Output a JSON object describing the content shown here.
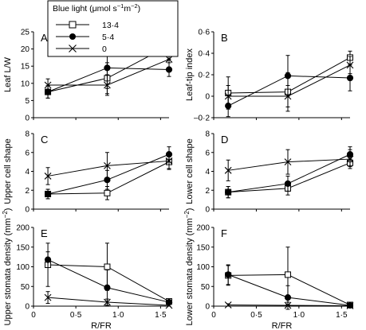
{
  "chart_data": [
    {
      "panel": "A",
      "type": "line",
      "ylabel": "Leaf L/W",
      "xlim": [
        0,
        1.6
      ],
      "ylim": [
        0,
        25
      ],
      "y_ticks": [
        0,
        5,
        10,
        15,
        20,
        25
      ],
      "x_ticks": [
        0,
        0.5,
        1.0,
        1.5
      ],
      "x": [
        0.17,
        0.87,
        1.6
      ],
      "series": [
        {
          "name": "13·4",
          "marker": "square",
          "values": [
            7.5,
            11.5,
            21
          ],
          "err": [
            1.8,
            4.5,
            4
          ]
        },
        {
          "name": "5·4",
          "marker": "circle",
          "values": [
            7.5,
            14.5,
            14
          ],
          "err": [
            1.8,
            6,
            2
          ]
        },
        {
          "name": "0",
          "marker": "x",
          "values": [
            9.5,
            9.5,
            17
          ],
          "err": [
            1.8,
            3,
            3
          ]
        }
      ]
    },
    {
      "panel": "B",
      "type": "line",
      "ylabel": "Leaf-tip index",
      "xlim": [
        0,
        1.6
      ],
      "ylim": [
        -0.2,
        0.6
      ],
      "y_ticks": [
        -0.2,
        0,
        0.2,
        0.4,
        0.6
      ],
      "y_tick_labels": [
        "–0·2",
        "0",
        "0·2",
        "0·4",
        "0·6"
      ],
      "x_ticks": [
        0,
        0.5,
        1.0,
        1.5
      ],
      "x": [
        0.17,
        0.87,
        1.6
      ],
      "series": [
        {
          "name": "13·4",
          "marker": "square",
          "values": [
            0.03,
            0.04,
            0.36
          ],
          "err": [
            0.15,
            0.18,
            0.06
          ]
        },
        {
          "name": "5·4",
          "marker": "circle",
          "values": [
            -0.09,
            0.19,
            0.17
          ],
          "err": [
            0.1,
            0.19,
            0.12
          ]
        },
        {
          "name": "0",
          "marker": "x",
          "values": [
            0.0,
            0.0,
            0.29
          ],
          "err": [
            0.1,
            0.1,
            0.08
          ]
        }
      ]
    },
    {
      "panel": "C",
      "type": "line",
      "ylabel": "Upper cell shape",
      "xlim": [
        0,
        1.6
      ],
      "ylim": [
        0,
        8
      ],
      "y_ticks": [
        0,
        2,
        4,
        6,
        8
      ],
      "x_ticks": [
        0,
        0.5,
        1.0,
        1.5
      ],
      "x": [
        0.17,
        0.87,
        1.6
      ],
      "series": [
        {
          "name": "13·4",
          "marker": "square",
          "values": [
            1.6,
            1.7,
            5.0
          ],
          "err": [
            0.5,
            0.7,
            0.7
          ]
        },
        {
          "name": "5·4",
          "marker": "circle",
          "values": [
            1.6,
            3.1,
            5.8
          ],
          "err": [
            0.5,
            1.0,
            0.8
          ]
        },
        {
          "name": "0",
          "marker": "x",
          "values": [
            3.5,
            4.6,
            5.1
          ],
          "err": [
            0.9,
            1.4,
            0.9
          ]
        }
      ]
    },
    {
      "panel": "D",
      "type": "line",
      "ylabel": "Lower cell shape",
      "xlim": [
        0,
        1.6
      ],
      "ylim": [
        0,
        8
      ],
      "y_ticks": [
        0,
        2,
        4,
        6,
        8
      ],
      "x_ticks": [
        0,
        0.5,
        1.0,
        1.5
      ],
      "x": [
        0.17,
        0.87,
        1.6
      ],
      "series": [
        {
          "name": "13·4",
          "marker": "square",
          "values": [
            1.8,
            2.2,
            4.9
          ],
          "err": [
            0.6,
            0.7,
            0.4
          ]
        },
        {
          "name": "5·4",
          "marker": "circle",
          "values": [
            1.8,
            2.7,
            5.8
          ],
          "err": [
            0.6,
            0.8,
            0.8
          ]
        },
        {
          "name": "0",
          "marker": "x",
          "values": [
            4.1,
            5.0,
            5.3
          ],
          "err": [
            1.1,
            1.3,
            1.0
          ]
        }
      ]
    },
    {
      "panel": "E",
      "type": "line",
      "ylabel": "Upper stomata density (mm⁻²)",
      "xlabel": "R/FR",
      "xlim": [
        0,
        1.6
      ],
      "ylim": [
        0,
        200
      ],
      "y_ticks": [
        0,
        50,
        100,
        150,
        200
      ],
      "x_ticks": [
        0,
        0.5,
        1.0,
        1.5
      ],
      "x_tick_labels": [
        "0",
        "0·5",
        "1·0",
        "1·5"
      ],
      "x": [
        0.17,
        0.87,
        1.6
      ],
      "series": [
        {
          "name": "13·4",
          "marker": "square",
          "values": [
            105,
            100,
            12
          ],
          "err": [
            55,
            60,
            4
          ]
        },
        {
          "name": "5·4",
          "marker": "circle",
          "values": [
            118,
            47,
            10
          ],
          "err": [
            20,
            45,
            3
          ]
        },
        {
          "name": "0",
          "marker": "x",
          "values": [
            22,
            10,
            2
          ],
          "err": [
            15,
            8,
            2
          ]
        }
      ]
    },
    {
      "panel": "F",
      "type": "line",
      "ylabel": "Lower stomata density (mm⁻²)",
      "xlabel": "R/FR",
      "xlim": [
        0,
        1.6
      ],
      "ylim": [
        0,
        200
      ],
      "y_ticks": [
        0,
        50,
        100,
        150,
        200
      ],
      "x_ticks": [
        0,
        0.5,
        1.0,
        1.5
      ],
      "x_tick_labels": [
        "0",
        "0·5",
        "1·0",
        "1·5"
      ],
      "x": [
        0.17,
        0.87,
        1.6
      ],
      "series": [
        {
          "name": "13·4",
          "marker": "square",
          "values": [
            78,
            80,
            3
          ],
          "err": [
            25,
            70,
            2
          ]
        },
        {
          "name": "5·4",
          "marker": "circle",
          "values": [
            80,
            22,
            2
          ],
          "err": [
            25,
            30,
            2
          ]
        },
        {
          "name": "0",
          "marker": "x",
          "values": [
            3,
            2,
            1
          ],
          "err": [
            3,
            2,
            1
          ]
        }
      ]
    }
  ],
  "legend": {
    "title_text": "Blue light (μmol s",
    "title_exp1": "−1",
    "title_mid": "m",
    "title_exp2": "−2",
    "title_end": ")",
    "items": [
      "13·4",
      "5·4",
      "0"
    ]
  },
  "ylabel_unit_base": "mm",
  "ylabel_unit_exp": "−2",
  "style": {
    "line_color": "#000000",
    "open_fill": "#ffffff",
    "filled_fill": "#000000"
  }
}
